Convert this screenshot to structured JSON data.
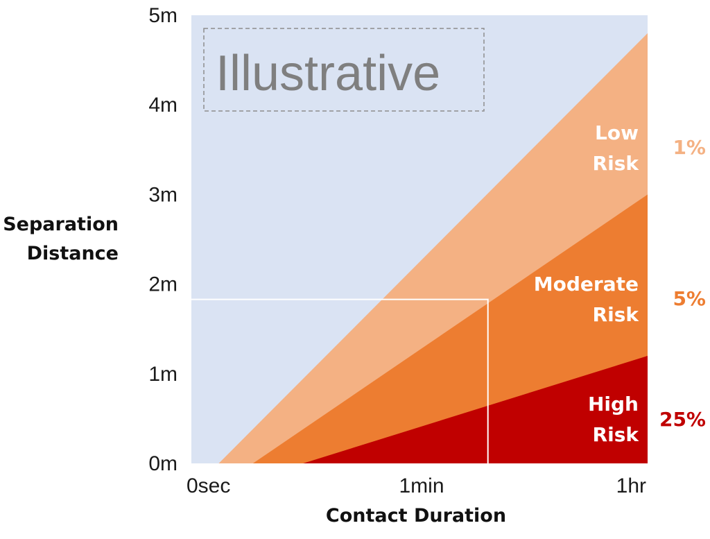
{
  "chart_data": {
    "type": "area",
    "annotation": "Illustrative",
    "xlabel": "Contact Duration",
    "ylabel_lines": [
      "Separation",
      "Distance"
    ],
    "x_ticks": [
      "0sec",
      "1min",
      "1hr"
    ],
    "y_ticks": [
      "0m",
      "1m",
      "2m",
      "3m",
      "4m",
      "5m"
    ],
    "xlim": [
      0,
      2
    ],
    "ylim": [
      0,
      5
    ],
    "x_scale": "log-like (0sec, 1min, 1hr)",
    "grid": false,
    "regions": [
      {
        "name": "background",
        "color": "#dae3f3",
        "points": []
      },
      {
        "name": "Low Risk",
        "label_lines": [
          "Low",
          "Risk"
        ],
        "percent": "1%",
        "color": "#f4b183",
        "percent_color": "#f4b183",
        "points": [
          [
            0.12,
            0
          ],
          [
            2,
            4.8
          ],
          [
            2,
            0
          ]
        ]
      },
      {
        "name": "Moderate Risk",
        "label_lines": [
          "Moderate",
          "Risk"
        ],
        "percent": "5%",
        "color": "#ed7d31",
        "percent_color": "#ed7d31",
        "points": [
          [
            0.27,
            0
          ],
          [
            2,
            3.0
          ],
          [
            2,
            0
          ]
        ]
      },
      {
        "name": "High Risk",
        "label_lines": [
          "High",
          "Risk"
        ],
        "percent": "25%",
        "color": "#c00000",
        "percent_color": "#c00000",
        "points": [
          [
            0.49,
            0
          ],
          [
            2,
            1.2
          ],
          [
            2,
            0
          ]
        ]
      }
    ],
    "reference_box": {
      "x": [
        0,
        1.3
      ],
      "y": [
        0,
        1.83
      ],
      "color": "#ffffff"
    }
  }
}
